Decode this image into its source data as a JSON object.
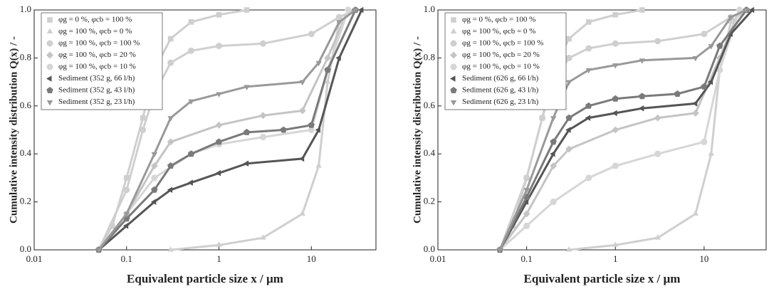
{
  "chart_data": [
    {
      "type": "scatter",
      "x_label": "Equivalent particle size x / µm",
      "y_label": "Cumulative intensity distribution Q(x) / -",
      "log_x": true,
      "xlim": [
        0.01,
        50
      ],
      "xticks": [
        0.01,
        0.1,
        1,
        10
      ],
      "ylim": [
        0,
        1
      ],
      "yticks": [
        {
          "value": 0,
          "label": "0.0"
        },
        0.2,
        0.4,
        0.6,
        0.8,
        {
          "value": 1,
          "label": "1.0"
        }
      ],
      "legend": "upper left",
      "series": [
        {
          "name": "φg = 0 %, φcb = 100 %",
          "color": "#cfcfcf",
          "marker": "square",
          "x": [
            0.05,
            0.07,
            0.1,
            0.15,
            0.2,
            0.3,
            0.5,
            1,
            2
          ],
          "values": [
            0,
            0.1,
            0.3,
            0.55,
            0.75,
            0.88,
            0.95,
            0.98,
            1.0
          ]
        },
        {
          "name": "φg = 100 %, φcb = 0 %",
          "color": "#cfcfcf",
          "marker": "triangle",
          "x": [
            0.3,
            1,
            3,
            8,
            12,
            15,
            20,
            30
          ],
          "values": [
            0,
            0.02,
            0.05,
            0.15,
            0.35,
            0.7,
            0.95,
            1.0
          ]
        },
        {
          "name": "φg = 100 %, φcb = 100 %",
          "color": "#cfcfcf",
          "marker": "circle",
          "x": [
            0.05,
            0.1,
            0.15,
            0.2,
            0.3,
            0.5,
            1,
            3,
            10,
            20,
            30
          ],
          "values": [
            0,
            0.25,
            0.5,
            0.65,
            0.78,
            0.83,
            0.85,
            0.86,
            0.9,
            0.97,
            1.0
          ]
        },
        {
          "name": "φg = 100 %, φcb = 20 %",
          "color": "#c4c4c4",
          "marker": "diamond",
          "x": [
            0.05,
            0.1,
            0.2,
            0.3,
            1,
            3,
            8,
            15,
            25
          ],
          "values": [
            0,
            0.15,
            0.35,
            0.45,
            0.52,
            0.56,
            0.58,
            0.8,
            1.0
          ]
        },
        {
          "name": "φg = 100 %, φcb = 10 %",
          "color": "#d6d6d6",
          "marker": "hexagon",
          "x": [
            0.05,
            0.1,
            0.2,
            0.5,
            1,
            3,
            10,
            15,
            25
          ],
          "values": [
            0,
            0.15,
            0.3,
            0.4,
            0.44,
            0.47,
            0.5,
            0.75,
            1.0
          ]
        },
        {
          "name": "Sediment (352 g, 66 l/h)",
          "color": "#555555",
          "marker": "left",
          "x": [
            0.05,
            0.1,
            0.2,
            0.3,
            0.5,
            1,
            2,
            8,
            12,
            20,
            35
          ],
          "values": [
            0,
            0.1,
            0.2,
            0.25,
            0.28,
            0.32,
            0.36,
            0.38,
            0.5,
            0.8,
            1.0
          ]
        },
        {
          "name": "Sediment (352 g, 43 l/h)",
          "color": "#7a7a7a",
          "marker": "pentagon",
          "x": [
            0.05,
            0.1,
            0.2,
            0.3,
            0.5,
            1,
            2,
            5,
            10,
            15,
            30
          ],
          "values": [
            0,
            0.13,
            0.25,
            0.35,
            0.4,
            0.45,
            0.49,
            0.5,
            0.52,
            0.75,
            1.0
          ]
        },
        {
          "name": "Sediment (352 g, 23 l/h)",
          "color": "#999999",
          "marker": "down",
          "x": [
            0.05,
            0.1,
            0.2,
            0.3,
            0.5,
            1,
            2,
            8,
            12,
            20,
            30
          ],
          "values": [
            0,
            0.15,
            0.4,
            0.55,
            0.62,
            0.65,
            0.68,
            0.7,
            0.78,
            0.95,
            1.0
          ]
        }
      ]
    },
    {
      "type": "scatter",
      "x_label": "Equivalent particle size x / µm",
      "y_label": "Cumulative intensity distribution Q(x) / -",
      "log_x": true,
      "xlim": [
        0.01,
        50
      ],
      "xticks": [
        0.01,
        0.1,
        1,
        10
      ],
      "ylim": [
        0,
        1
      ],
      "yticks": [
        {
          "value": 0,
          "label": "0.0"
        },
        0.2,
        0.4,
        0.6,
        0.8,
        {
          "value": 1,
          "label": "1.0"
        }
      ],
      "legend": "upper left",
      "series": [
        {
          "name": "φg = 0 %, φcb = 100 %",
          "color": "#cfcfcf",
          "marker": "square",
          "x": [
            0.05,
            0.07,
            0.1,
            0.15,
            0.2,
            0.3,
            0.5,
            1,
            2
          ],
          "values": [
            0,
            0.1,
            0.3,
            0.55,
            0.75,
            0.88,
            0.95,
            0.98,
            1.0
          ]
        },
        {
          "name": "φg = 100 %, φcb = 0 %",
          "color": "#cfcfcf",
          "marker": "triangle",
          "x": [
            0.3,
            1,
            3,
            8,
            12,
            15,
            20,
            30
          ],
          "values": [
            0,
            0.02,
            0.05,
            0.15,
            0.4,
            0.75,
            0.95,
            1.0
          ]
        },
        {
          "name": "φg = 100 %, φcb = 100 %",
          "color": "#cfcfcf",
          "marker": "circle",
          "x": [
            0.05,
            0.1,
            0.15,
            0.2,
            0.3,
            0.5,
            1,
            3,
            10,
            20,
            30
          ],
          "values": [
            0,
            0.3,
            0.55,
            0.7,
            0.8,
            0.84,
            0.86,
            0.87,
            0.9,
            0.97,
            1.0
          ]
        },
        {
          "name": "φg = 100 %, φcb = 20 %",
          "color": "#c4c4c4",
          "marker": "diamond",
          "x": [
            0.05,
            0.1,
            0.2,
            0.3,
            1,
            3,
            8,
            15,
            25
          ],
          "values": [
            0,
            0.15,
            0.35,
            0.42,
            0.5,
            0.55,
            0.57,
            0.8,
            1.0
          ]
        },
        {
          "name": "φg = 100 %, φcb = 10 %",
          "color": "#d6d6d6",
          "marker": "hexagon",
          "x": [
            0.05,
            0.1,
            0.2,
            0.5,
            1,
            3,
            10,
            15,
            25
          ],
          "values": [
            0,
            0.1,
            0.2,
            0.3,
            0.35,
            0.4,
            0.45,
            0.75,
            1.0
          ]
        },
        {
          "name": "Sediment (626 g, 66 l/h)",
          "color": "#555555",
          "marker": "left",
          "x": [
            0.05,
            0.1,
            0.2,
            0.3,
            0.5,
            1,
            2,
            8,
            12,
            20,
            35
          ],
          "values": [
            0,
            0.2,
            0.4,
            0.5,
            0.55,
            0.57,
            0.59,
            0.61,
            0.7,
            0.9,
            1.0
          ]
        },
        {
          "name": "Sediment (626 g, 43 l/h)",
          "color": "#7a7a7a",
          "marker": "pentagon",
          "x": [
            0.05,
            0.1,
            0.2,
            0.3,
            0.5,
            1,
            2,
            5,
            10,
            15,
            30
          ],
          "values": [
            0,
            0.22,
            0.45,
            0.55,
            0.6,
            0.63,
            0.64,
            0.65,
            0.68,
            0.85,
            1.0
          ]
        },
        {
          "name": "Sediment (626 g, 23 l/h)",
          "color": "#999999",
          "marker": "down",
          "x": [
            0.05,
            0.1,
            0.2,
            0.3,
            0.5,
            1,
            2,
            8,
            12,
            20,
            30
          ],
          "values": [
            0,
            0.25,
            0.55,
            0.7,
            0.75,
            0.77,
            0.79,
            0.8,
            0.85,
            0.97,
            1.0
          ]
        }
      ]
    }
  ]
}
